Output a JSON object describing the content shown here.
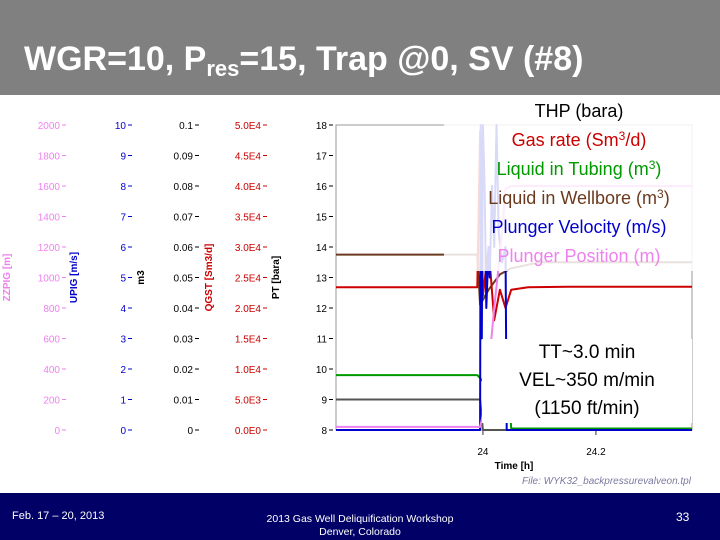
{
  "slide": {
    "title_main": "WGR=10, P",
    "title_sub": "res",
    "title_rest": "=15, Trap @0, SV (#8)",
    "footer_date": "Feb. 17 – 20, 2013",
    "footer_event_line1": "2013 Gas Well Deliquification Workshop",
    "footer_event_line2": "Denver, Colorado",
    "page_number": "33",
    "file_label": "File: WYK32_backpressurevalveon.tpl"
  },
  "legend": {
    "thp": "THP (bara)",
    "gas_rate_pre": "Gas rate (Sm",
    "gas_rate_sup": "3",
    "gas_rate_post": "/d)",
    "liq_tubing_pre": "Liquid in Tubing (m",
    "liq_tubing_sup": "3",
    "liq_tubing_post": ")",
    "liq_wellbore_pre": "Liquid in Wellbore (m",
    "liq_wellbore_sup": "3",
    "liq_wellbore_post": ")",
    "plunger_velocity": "Plunger Velocity (m/s)",
    "plunger_position": "Plunger Position (m)"
  },
  "note": {
    "line1": "TT~3.0 min",
    "line2": "VEL~350 m/min",
    "line3": "(1150 ft/min)"
  },
  "chart_data": {
    "type": "line",
    "x_label": "Time [h]",
    "x_range": [
      23.74,
      24.37
    ],
    "x_ticks": [
      "24",
      "24.2"
    ],
    "x_tick_values": [
      24,
      24.2
    ],
    "axes": [
      {
        "id": "zzpig",
        "label": "ZZPIG [m]",
        "color": "#ee82ee",
        "ticks": [
          "2000",
          "1800",
          "1600",
          "1400",
          "1200",
          "1000",
          "800",
          "600",
          "400",
          "200",
          "0"
        ],
        "range": [
          0,
          2000
        ]
      },
      {
        "id": "upig",
        "label": "UPIG [m/s]",
        "color": "#0000cc",
        "ticks": [
          "10",
          "9",
          "8",
          "7",
          "6",
          "5",
          "4",
          "3",
          "2",
          "1",
          "0"
        ],
        "range": [
          0,
          10
        ]
      },
      {
        "id": "m3",
        "label": "m3",
        "color": "#000000",
        "ticks": [
          "0.1",
          "0.09",
          "0.08",
          "0.07",
          "0.06",
          "0.05",
          "0.04",
          "0.03",
          "0.02",
          "0.01",
          "0"
        ],
        "range": [
          0,
          0.1
        ]
      },
      {
        "id": "qgst",
        "label": "QGST [Sm3/d]",
        "color": "#cc0000",
        "ticks": [
          "5.0E4",
          "4.5E4",
          "4.0E4",
          "3.5E4",
          "3.0E4",
          "2.5E4",
          "2.0E4",
          "1.5E4",
          "1.0E4",
          "5.0E3",
          "0.0E0"
        ],
        "range": [
          0,
          50000
        ]
      },
      {
        "id": "pt",
        "label": "PT [bara]",
        "color": "#000000",
        "ticks": [
          "18",
          "17",
          "16",
          "15",
          "14",
          "13",
          "12",
          "11",
          "10",
          "9",
          "8"
        ],
        "range": [
          8,
          18
        ]
      }
    ],
    "series": [
      {
        "name": "THP (bara)",
        "axis": "pt",
        "color": "#6b3a1e",
        "x": [
          23.74,
          23.99,
          23.995,
          24.01,
          24.03,
          24.05,
          24.1,
          24.2,
          24.3,
          24.37
        ],
        "y": [
          13.75,
          13.75,
          12.1,
          12.6,
          13.1,
          13.3,
          13.5,
          13.5,
          13.5,
          13.5
        ]
      },
      {
        "name": "Gas rate (Sm3/d)",
        "axis": "qgst",
        "color": "#cc0000",
        "x": [
          23.74,
          23.99,
          23.995,
          24.0,
          24.01,
          24.02,
          24.03,
          24.04,
          24.05,
          24.08,
          24.15,
          24.25,
          24.37
        ],
        "y": [
          23400,
          23400,
          49000,
          22000,
          30000,
          18000,
          23000,
          20000,
          23000,
          23400,
          23500,
          23500,
          23500
        ]
      },
      {
        "name": "Liquid in Tubing (m3)",
        "axis": "m3",
        "color": "#009900",
        "x": [
          23.74,
          23.99,
          24.0,
          24.01,
          24.02,
          24.03,
          24.04,
          24.045,
          24.05,
          24.1,
          24.2,
          24.3,
          24.37
        ],
        "y": [
          0.018,
          0.018,
          0.016,
          0.017,
          0.0165,
          0.016,
          0.0165,
          0.016,
          0.0005,
          0.0005,
          0.0005,
          0.0005,
          0.0005
        ]
      },
      {
        "name": "Liquid in Wellbore (m3)",
        "axis": "m3",
        "color": "#555555",
        "x": [
          23.74,
          23.995,
          24.0,
          24.05,
          24.37
        ],
        "y": [
          0.01,
          0.01,
          0.0,
          0.0,
          0.0
        ]
      },
      {
        "name": "Plunger Velocity (m/s)",
        "axis": "upig",
        "color": "#0000cc",
        "x": [
          23.74,
          23.995,
          23.996,
          23.998,
          24.0,
          24.003,
          24.006,
          24.01,
          24.012,
          24.016,
          24.02,
          24.024,
          24.028,
          24.034,
          24.04,
          24.042,
          24.05,
          24.37
        ],
        "y": [
          0,
          0,
          10,
          3,
          10,
          8,
          4,
          6,
          5,
          8,
          6,
          10,
          6.5,
          5.5,
          6,
          0,
          0,
          0
        ]
      },
      {
        "name": "Plunger Position (m)",
        "axis": "zzpig",
        "color": "#ee82ee",
        "x": [
          23.74,
          23.995,
          24.0,
          24.01,
          24.02,
          24.03,
          24.035,
          24.04,
          24.05,
          24.1,
          24.2,
          24.3,
          24.37
        ],
        "y": [
          20,
          20,
          100,
          400,
          800,
          1150,
          1350,
          1580,
          1600,
          1600,
          1600,
          1600,
          1600
        ]
      }
    ]
  }
}
